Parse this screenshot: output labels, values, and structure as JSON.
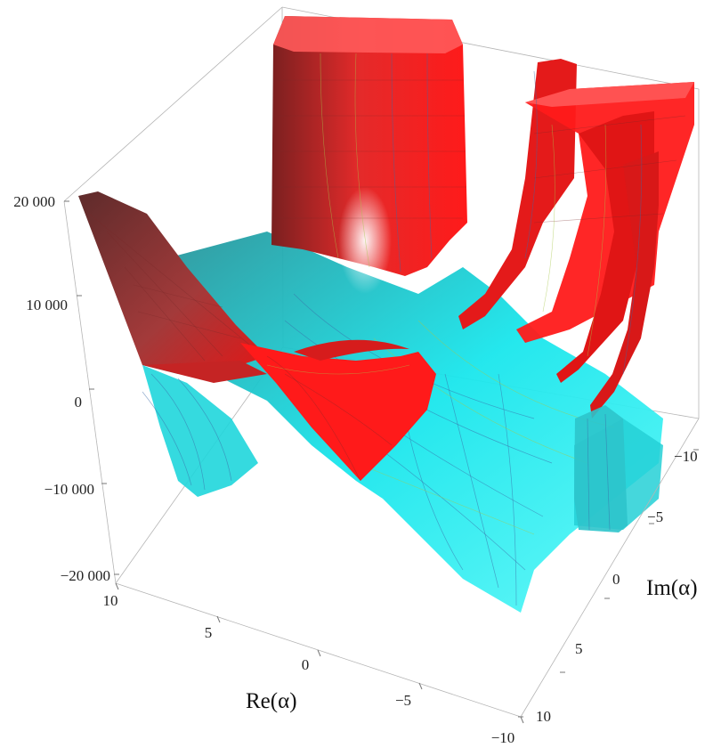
{
  "chart_data": {
    "type": "surface-3d",
    "title": "",
    "zlabel": "",
    "xlabel": "Re(α)",
    "ylabel": "Im(α)",
    "x_ticks": [
      "10",
      "5",
      "0",
      "−5",
      "−10"
    ],
    "y_ticks": [
      "−10",
      "−5",
      "0",
      "5",
      "10"
    ],
    "z_ticks": [
      "20 000",
      "10 000",
      "0",
      "−10 000",
      "−20 000"
    ],
    "xlim": [
      -10,
      10
    ],
    "ylim": [
      -10,
      10
    ],
    "zlim": [
      -20000,
      20000
    ],
    "grid": false,
    "series": [
      {
        "color": "#ff1a1a"
      },
      {
        "color": "#19f0ef"
      }
    ]
  }
}
